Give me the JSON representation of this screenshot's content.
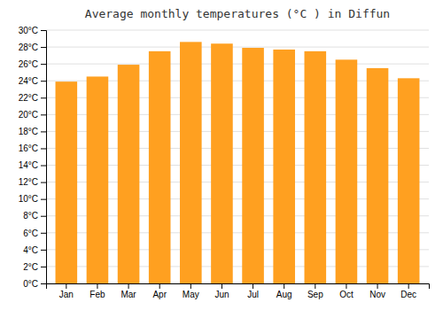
{
  "chart_data": {
    "type": "bar",
    "title": "Average monthly temperatures (°C ) in Diffun",
    "categories": [
      "Jan",
      "Feb",
      "Mar",
      "Apr",
      "May",
      "Jun",
      "Jul",
      "Aug",
      "Sep",
      "Oct",
      "Nov",
      "Dec"
    ],
    "values": [
      23.9,
      24.5,
      25.9,
      27.5,
      28.6,
      28.4,
      27.9,
      27.7,
      27.5,
      26.5,
      25.5,
      24.3
    ],
    "color": "#FFA020",
    "ylim": [
      0,
      30
    ],
    "yticks": [
      {
        "value": 0,
        "label": "0°C"
      },
      {
        "value": 2,
        "label": "2°C"
      },
      {
        "value": 4,
        "label": "4°C"
      },
      {
        "value": 6,
        "label": "6°C"
      },
      {
        "value": 8,
        "label": "8°C"
      },
      {
        "value": 10,
        "label": "10°C"
      },
      {
        "value": 12,
        "label": "12°C"
      },
      {
        "value": 14,
        "label": "14°C"
      },
      {
        "value": 16,
        "label": "16°C"
      },
      {
        "value": 18,
        "label": "18°C"
      },
      {
        "value": 20,
        "label": "20°C"
      },
      {
        "value": 22,
        "label": "22°C"
      },
      {
        "value": 24,
        "label": "24°C"
      },
      {
        "value": 26,
        "label": "26°C"
      },
      {
        "value": 28,
        "label": "28°C"
      },
      {
        "value": 30,
        "label": "30°C"
      }
    ],
    "grid": true
  }
}
